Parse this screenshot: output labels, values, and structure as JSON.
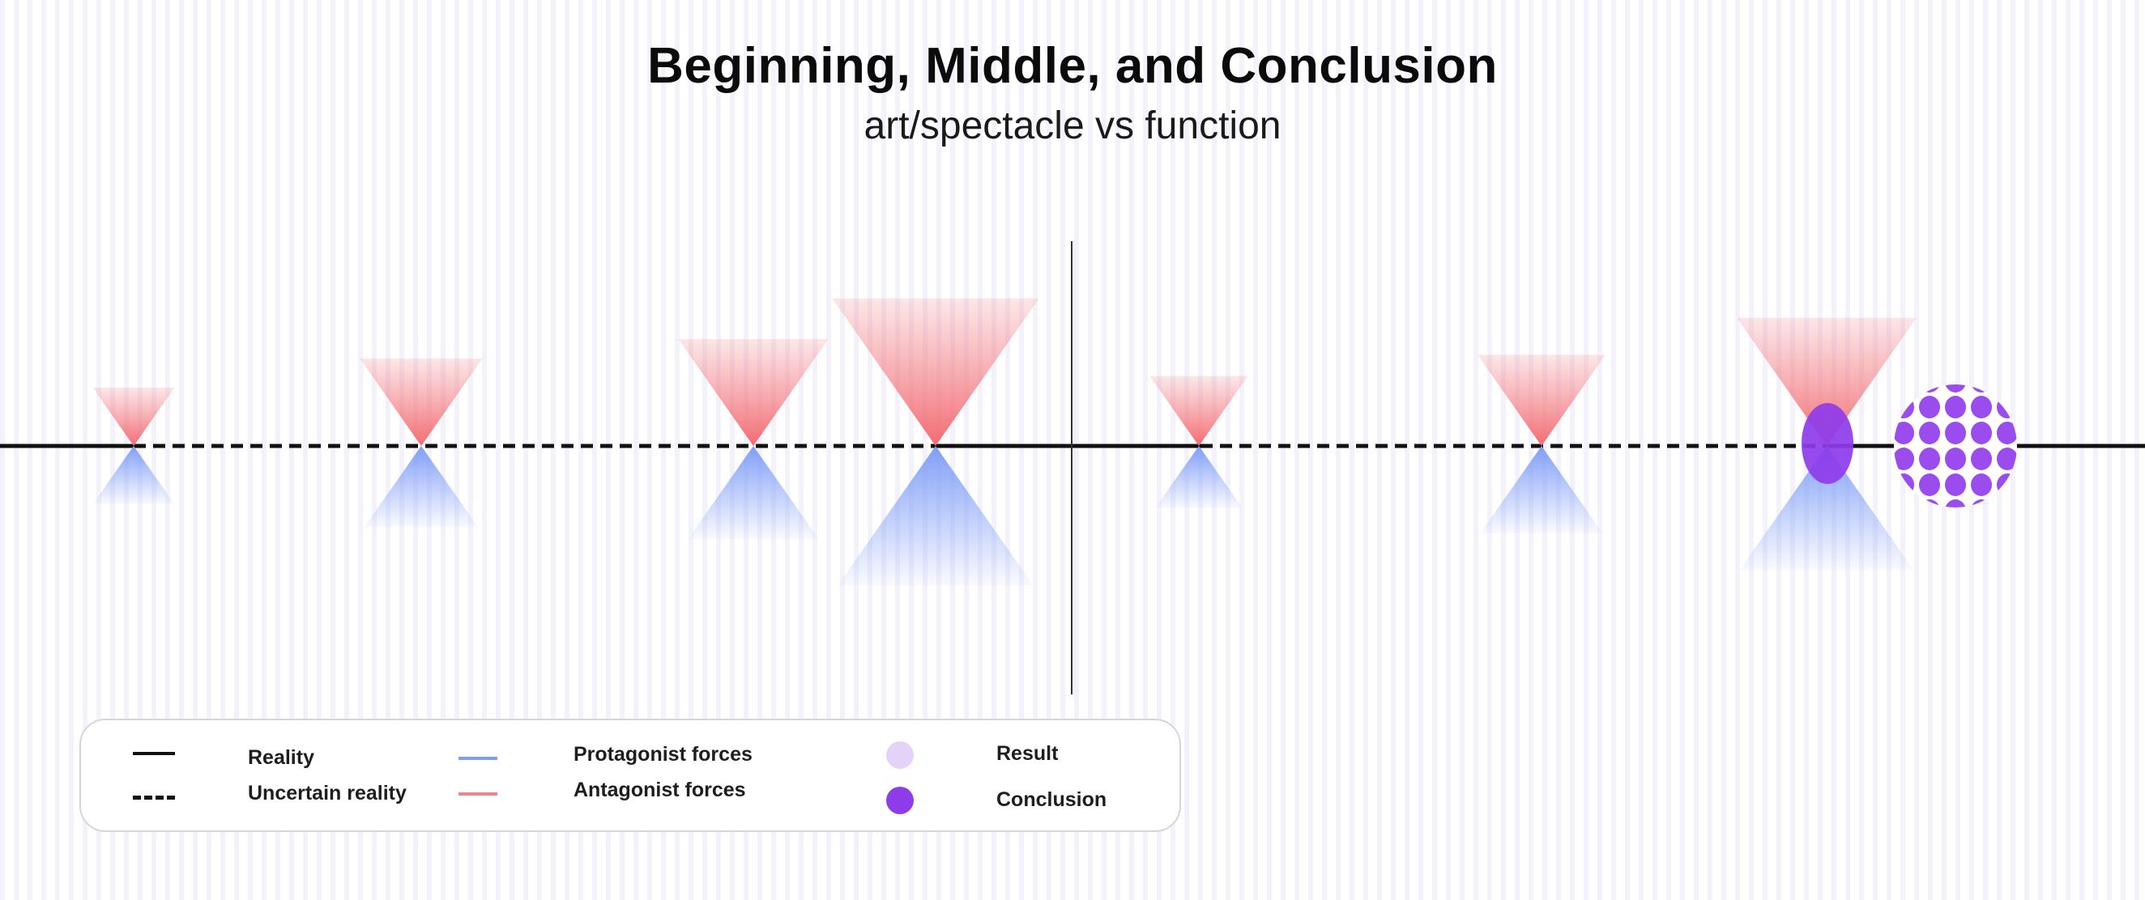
{
  "header": {
    "title": "Beginning, Middle, and Conclusion",
    "subtitle": "art/spectacle vs function"
  },
  "colors": {
    "reality_line": "#111111",
    "protagonist": "#7f9ef7",
    "antagonist": "#f3858a",
    "result": "#e4d2f8",
    "conclusion": "#8e3cea",
    "divider": "#333333"
  },
  "diagram": {
    "events": [
      {
        "antagonist_force": 0.3,
        "protagonist_force": 0.3
      },
      {
        "antagonist_force": 0.45,
        "protagonist_force": 0.42
      },
      {
        "antagonist_force": 0.55,
        "protagonist_force": 0.48
      },
      {
        "antagonist_force": 0.76,
        "protagonist_force": 0.72
      },
      {
        "antagonist_force": 0.36,
        "protagonist_force": 0.32
      },
      {
        "antagonist_force": 0.47,
        "protagonist_force": 0.45
      },
      {
        "antagonist_force": 0.66,
        "protagonist_force": 0.64
      }
    ],
    "segments": [
      "solid",
      "dashed",
      "solid",
      "dashed",
      "solid"
    ],
    "end_markers": [
      "conclusion",
      "result-cluster"
    ]
  },
  "legend": {
    "reality": "Reality",
    "uncertain_reality": "Uncertain reality",
    "protagonist": "Protagonist forces",
    "antagonist": "Antagonist forces",
    "result": "Result",
    "conclusion": "Conclusion"
  }
}
